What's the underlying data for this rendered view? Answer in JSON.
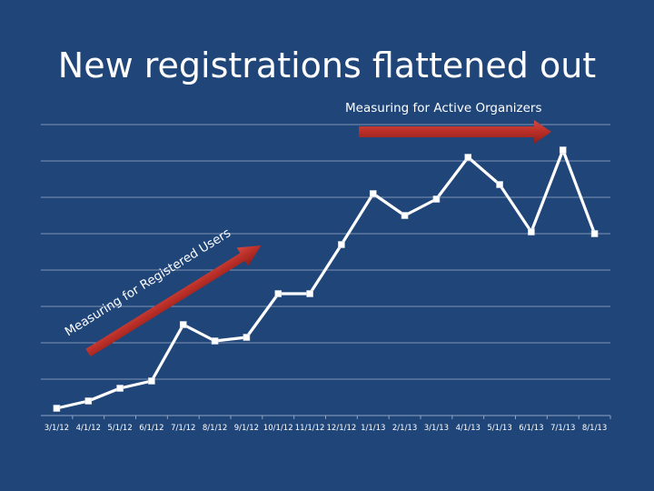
{
  "slide": {
    "title": "New registrations flattened out"
  },
  "chart_data": {
    "type": "line",
    "title": "",
    "xlabel": "",
    "ylabel": "",
    "grid": true,
    "categories": [
      "3/1/12",
      "4/1/12",
      "5/1/12",
      "6/1/12",
      "7/1/12",
      "8/1/12",
      "9/1/12",
      "10/1/12",
      "11/1/12",
      "12/1/12",
      "1/1/13",
      "2/1/13",
      "3/1/13",
      "4/1/13",
      "5/1/13",
      "6/1/13",
      "7/1/13",
      "8/1/13"
    ],
    "series": [
      {
        "values": [
          0.1,
          0.3,
          0.65,
          0.85,
          2.4,
          1.95,
          2.05,
          3.25,
          3.25,
          4.6,
          6.0,
          5.4,
          5.85,
          7.0,
          6.25,
          4.95,
          7.2,
          4.9
        ]
      }
    ],
    "ylim": [
      -0.1,
      7.9
    ],
    "gridline_count": 8,
    "annotations": [
      {
        "text": "Measuring for Registered Users"
      },
      {
        "text": "Measuring for Active Organizers"
      }
    ],
    "colors": {
      "background": "#1f4579",
      "line": "#ffffff",
      "marker": "#ffffff",
      "gridline": "#7f93b3",
      "arrow": "#c0392b"
    }
  }
}
